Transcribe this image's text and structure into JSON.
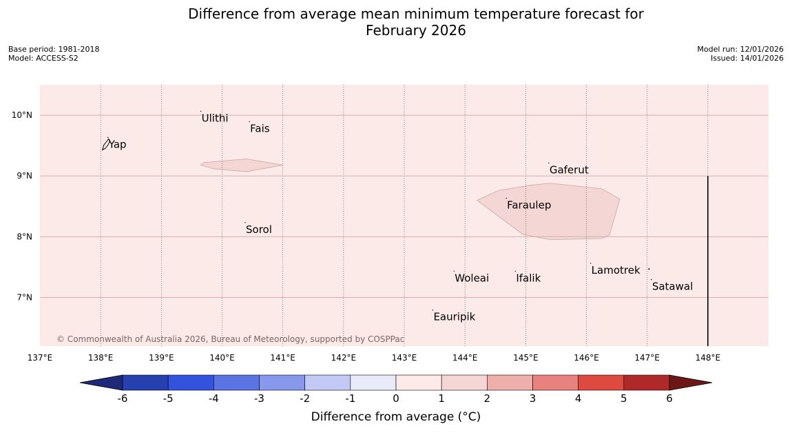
{
  "title_line1": "Difference from average mean minimum temperature forecast for",
  "title_line2": "February 2026",
  "meta": {
    "base_period": "Base period: 1981-2018",
    "model": "Model: ACCESS-S2",
    "model_run": "Model run: 12/01/2026",
    "issued": "Issued: 14/01/2026"
  },
  "copyright": "© Commonwealth of Australia 2026, Bureau of Meteorology, supported by COSPPac",
  "map": {
    "lon_range": [
      137.0,
      149.0
    ],
    "lat_range": [
      6.2,
      10.5
    ],
    "lon_ticks": [
      {
        "value": 137,
        "label": "137°E"
      },
      {
        "value": 138,
        "label": "138°E"
      },
      {
        "value": 139,
        "label": "139°E"
      },
      {
        "value": 140,
        "label": "140°E"
      },
      {
        "value": 141,
        "label": "141°E"
      },
      {
        "value": 142,
        "label": "142°E"
      },
      {
        "value": 143,
        "label": "143°E"
      },
      {
        "value": 144,
        "label": "144°E"
      },
      {
        "value": 145,
        "label": "145°E"
      },
      {
        "value": 146,
        "label": "146°E"
      },
      {
        "value": 147,
        "label": "147°E"
      },
      {
        "value": 148,
        "label": "148°E"
      }
    ],
    "lat_ticks": [
      {
        "value": 10,
        "label": "10°N"
      },
      {
        "value": 9,
        "label": "9°N"
      },
      {
        "value": 8,
        "label": "8°N"
      },
      {
        "value": 7,
        "label": "7°N"
      }
    ],
    "background_anomaly_class": "0 to 1",
    "background_color": "#fbeae8",
    "region_color": "#f4d6d4",
    "regions": [
      {
        "name": "anomaly-region-north",
        "anomaly_class": "1 to 2",
        "coords": [
          [
            139.65,
            9.18
          ],
          [
            139.85,
            9.12
          ],
          [
            140.4,
            9.07
          ],
          [
            141.0,
            9.18
          ],
          [
            140.4,
            9.28
          ],
          [
            139.7,
            9.22
          ]
        ]
      },
      {
        "name": "anomaly-region-central",
        "anomaly_class": "1 to 2",
        "coords": [
          [
            144.2,
            8.6
          ],
          [
            144.55,
            8.76
          ],
          [
            145.1,
            8.85
          ],
          [
            145.4,
            8.88
          ],
          [
            146.25,
            8.79
          ],
          [
            146.55,
            8.62
          ],
          [
            146.38,
            8.03
          ],
          [
            146.25,
            7.97
          ],
          [
            145.4,
            7.95
          ],
          [
            144.95,
            8.04
          ]
        ]
      }
    ],
    "places": [
      {
        "name": "Yap",
        "lon": 138.12,
        "lat": 9.52
      },
      {
        "name": "Ulithi",
        "lon": 139.65,
        "lat": 9.95
      },
      {
        "name": "Fais",
        "lon": 140.45,
        "lat": 9.78
      },
      {
        "name": "Gaferut",
        "lon": 145.38,
        "lat": 9.1
      },
      {
        "name": "Faraulep",
        "lon": 144.68,
        "lat": 8.52
      },
      {
        "name": "Sorol",
        "lon": 140.38,
        "lat": 8.12
      },
      {
        "name": "Woleai",
        "lon": 143.82,
        "lat": 7.32
      },
      {
        "name": "Ifalik",
        "lon": 144.83,
        "lat": 7.32
      },
      {
        "name": "Lamotrek",
        "lon": 146.07,
        "lat": 7.45
      },
      {
        "name": "Satawal",
        "lon": 147.07,
        "lat": 7.18
      },
      {
        "name": "Eauripik",
        "lon": 143.47,
        "lat": 6.68
      }
    ],
    "boundary_line": {
      "lon": 148.0,
      "lat_from": 6.2,
      "lat_to": 9.0
    }
  },
  "colorbar": {
    "label": "Difference from average (°C)",
    "ticks": [
      "-6",
      "-5",
      "-4",
      "-3",
      "-2",
      "-1",
      "0",
      "1",
      "2",
      "3",
      "4",
      "5",
      "6"
    ],
    "under_color": "#1e2a78",
    "over_color": "#6e1717",
    "colors": [
      "#2740b0",
      "#3352dd",
      "#5b74e3",
      "#8898ec",
      "#c2c9f5",
      "#e9ebfa",
      "#fbeae8",
      "#f4d6d4",
      "#eeafab",
      "#e8827e",
      "#dd4a40",
      "#b0292a"
    ]
  }
}
